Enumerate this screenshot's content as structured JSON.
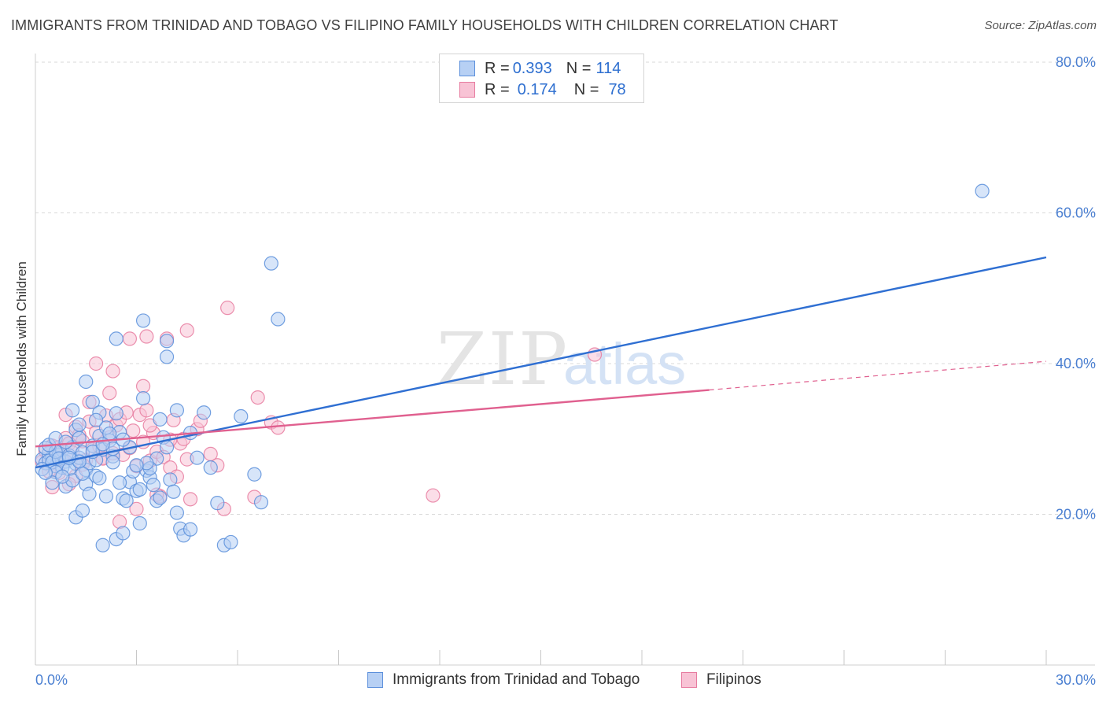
{
  "title": "IMMIGRANTS FROM TRINIDAD AND TOBAGO VS FILIPINO FAMILY HOUSEHOLDS WITH CHILDREN CORRELATION CHART",
  "source": "Source: ZipAtlas.com",
  "watermark": {
    "zip": "ZIP",
    "atlas": "atlas"
  },
  "legend": {
    "rows": [
      {
        "r_label": "R = ",
        "r_value": "0.393",
        "n_label": "N = ",
        "n_value": "114"
      },
      {
        "r_label": "R = ",
        "r_value": "0.174",
        "n_label": "N = ",
        "n_value": "78"
      }
    ]
  },
  "colors": {
    "blue_fill": "#b7d0f4",
    "blue_stroke": "#5b8fdb",
    "blue_line": "#2f6fd2",
    "pink_fill": "#f8c3d5",
    "pink_stroke": "#e77ca0",
    "pink_line": "#e0608f",
    "grid": "#d9d9d9",
    "axis_text": "#4a7fd1"
  },
  "chart_data": {
    "type": "scatter",
    "title": "IMMIGRANTS FROM TRINIDAD AND TOBAGO VS FILIPINO FAMILY HOUSEHOLDS WITH CHILDREN CORRELATION CHART",
    "xlabel": "",
    "ylabel": "Family Households with Children",
    "xlim": [
      0,
      30
    ],
    "ylim": [
      0,
      80
    ],
    "x_tick_labels": [
      "0.0%",
      "30.0%"
    ],
    "y_ticks": [
      20,
      40,
      60,
      80
    ],
    "y_tick_labels": [
      "20.0%",
      "40.0%",
      "60.0%",
      "80.0%"
    ],
    "grid": true,
    "legend_position": "top-center",
    "series": [
      {
        "name": "Immigrants from Trinidad and Tobago",
        "color": "#5b8fdb",
        "r": 0.393,
        "n": 114,
        "trend": {
          "x": [
            0,
            30
          ],
          "y": [
            26.2,
            54.1
          ]
        },
        "points": [
          [
            0.2,
            27.3
          ],
          [
            0.3,
            26.8
          ],
          [
            0.4,
            28.1
          ],
          [
            0.5,
            27.6
          ],
          [
            0.6,
            26.4
          ],
          [
            0.7,
            27.9
          ],
          [
            0.8,
            28.5
          ],
          [
            0.9,
            27.0
          ],
          [
            0.3,
            28.8
          ],
          [
            0.4,
            27.1
          ],
          [
            0.5,
            26.9
          ],
          [
            0.6,
            28.3
          ],
          [
            0.7,
            27.4
          ],
          [
            0.8,
            26.2
          ],
          [
            1.0,
            27.8
          ],
          [
            1.1,
            28.9
          ],
          [
            1.2,
            26.7
          ],
          [
            1.3,
            27.5
          ],
          [
            1.4,
            28.2
          ],
          [
            1.5,
            25.9
          ],
          [
            1.6,
            26.8
          ],
          [
            1.7,
            29.1
          ],
          [
            1.8,
            27.2
          ],
          [
            1.9,
            30.4
          ],
          [
            2.0,
            28.6
          ],
          [
            2.1,
            31.5
          ],
          [
            2.2,
            29.8
          ],
          [
            2.3,
            27.7
          ],
          [
            2.4,
            33.4
          ],
          [
            2.5,
            30.9
          ],
          [
            1.1,
            33.8
          ],
          [
            1.2,
            31.2
          ],
          [
            1.3,
            30.1
          ],
          [
            1.5,
            37.6
          ],
          [
            1.7,
            34.9
          ],
          [
            1.9,
            33.5
          ],
          [
            2.3,
            28.7
          ],
          [
            2.6,
            22.1
          ],
          [
            2.7,
            21.8
          ],
          [
            2.8,
            24.3
          ],
          [
            3.0,
            23.1
          ],
          [
            3.1,
            18.8
          ],
          [
            3.3,
            25.8
          ],
          [
            3.4,
            24.9
          ],
          [
            3.5,
            23.9
          ],
          [
            3.6,
            27.4
          ],
          [
            3.7,
            32.6
          ],
          [
            3.8,
            30.2
          ],
          [
            3.9,
            28.9
          ],
          [
            4.0,
            24.6
          ],
          [
            4.1,
            23.0
          ],
          [
            4.2,
            20.2
          ],
          [
            4.3,
            18.1
          ],
          [
            4.4,
            17.2
          ],
          [
            4.6,
            18.0
          ],
          [
            4.8,
            27.5
          ],
          [
            5.0,
            33.5
          ],
          [
            5.2,
            26.2
          ],
          [
            5.4,
            21.5
          ],
          [
            5.6,
            15.9
          ],
          [
            5.8,
            16.3
          ],
          [
            6.1,
            33.0
          ],
          [
            6.5,
            25.3
          ],
          [
            6.7,
            21.6
          ],
          [
            7.2,
            45.9
          ],
          [
            7.0,
            53.3
          ],
          [
            3.2,
            45.7
          ],
          [
            2.4,
            43.3
          ],
          [
            3.9,
            43.0
          ],
          [
            3.9,
            40.9
          ],
          [
            3.2,
            35.4
          ],
          [
            3.6,
            21.8
          ],
          [
            1.2,
            19.6
          ],
          [
            1.4,
            20.5
          ],
          [
            2.0,
            15.9
          ],
          [
            2.4,
            16.7
          ],
          [
            2.6,
            17.5
          ],
          [
            0.9,
            23.7
          ],
          [
            1.0,
            26.0
          ],
          [
            1.1,
            24.5
          ],
          [
            1.5,
            24.0
          ],
          [
            1.6,
            22.7
          ],
          [
            1.8,
            25.1
          ],
          [
            1.9,
            24.8
          ],
          [
            2.1,
            22.4
          ],
          [
            2.5,
            24.2
          ],
          [
            2.9,
            25.7
          ],
          [
            3.4,
            26.1
          ],
          [
            0.6,
            25.6
          ],
          [
            0.5,
            24.2
          ],
          [
            0.8,
            25.0
          ],
          [
            1.3,
            27.0
          ],
          [
            1.7,
            28.3
          ],
          [
            2.2,
            30.7
          ],
          [
            2.8,
            28.9
          ],
          [
            3.1,
            23.3
          ],
          [
            4.2,
            33.8
          ],
          [
            4.6,
            30.8
          ],
          [
            0.4,
            29.2
          ],
          [
            0.6,
            30.1
          ],
          [
            0.9,
            29.6
          ],
          [
            1.3,
            31.9
          ],
          [
            1.8,
            32.5
          ],
          [
            2.0,
            29.3
          ],
          [
            2.6,
            29.9
          ],
          [
            3.3,
            26.8
          ],
          [
            3.0,
            26.5
          ],
          [
            0.2,
            26.0
          ],
          [
            0.3,
            25.5
          ],
          [
            1.0,
            27.5
          ],
          [
            1.4,
            25.4
          ],
          [
            2.3,
            26.9
          ],
          [
            28.1,
            62.9
          ],
          [
            3.7,
            22.2
          ]
        ]
      },
      {
        "name": "Filipinos",
        "color": "#e77ca0",
        "r": 0.174,
        "n": 78,
        "trend": {
          "x": [
            0,
            20.0
          ],
          "y": [
            29.0,
            36.5
          ]
        },
        "trend_extension": {
          "x": [
            20.0,
            30
          ],
          "y": [
            36.5,
            40.3
          ]
        },
        "points": [
          [
            0.2,
            27.0
          ],
          [
            0.3,
            28.4
          ],
          [
            0.4,
            26.6
          ],
          [
            0.5,
            29.1
          ],
          [
            0.6,
            27.8
          ],
          [
            0.7,
            28.9
          ],
          [
            0.8,
            27.3
          ],
          [
            0.9,
            30.1
          ],
          [
            1.0,
            29.4
          ],
          [
            1.1,
            28.2
          ],
          [
            1.2,
            31.6
          ],
          [
            1.3,
            30.5
          ],
          [
            1.4,
            29.7
          ],
          [
            1.5,
            27.2
          ],
          [
            1.6,
            32.3
          ],
          [
            1.7,
            28.6
          ],
          [
            1.8,
            30.9
          ],
          [
            1.9,
            29.0
          ],
          [
            2.0,
            27.5
          ],
          [
            2.1,
            33.1
          ],
          [
            2.2,
            30.2
          ],
          [
            2.3,
            28.1
          ],
          [
            2.4,
            31.8
          ],
          [
            2.5,
            32.6
          ],
          [
            2.6,
            27.9
          ],
          [
            2.7,
            33.5
          ],
          [
            2.8,
            28.8
          ],
          [
            2.9,
            31.1
          ],
          [
            3.0,
            26.4
          ],
          [
            3.1,
            33.2
          ],
          [
            3.2,
            29.6
          ],
          [
            3.3,
            33.8
          ],
          [
            3.4,
            27.1
          ],
          [
            3.5,
            30.8
          ],
          [
            3.6,
            28.3
          ],
          [
            3.7,
            22.4
          ],
          [
            3.8,
            27.6
          ],
          [
            3.9,
            43.3
          ],
          [
            4.0,
            26.2
          ],
          [
            4.1,
            32.5
          ],
          [
            4.2,
            25.0
          ],
          [
            4.3,
            29.4
          ],
          [
            4.4,
            30.0
          ],
          [
            4.5,
            27.3
          ],
          [
            4.6,
            22.0
          ],
          [
            4.8,
            31.3
          ],
          [
            5.2,
            28.0
          ],
          [
            5.4,
            26.5
          ],
          [
            5.7,
            47.4
          ],
          [
            5.6,
            20.7
          ],
          [
            6.6,
            35.5
          ],
          [
            6.5,
            22.3
          ],
          [
            7.0,
            32.2
          ],
          [
            7.2,
            31.5
          ],
          [
            11.8,
            22.5
          ],
          [
            16.6,
            41.2
          ],
          [
            2.3,
            39.0
          ],
          [
            2.8,
            43.3
          ],
          [
            3.3,
            43.6
          ],
          [
            4.5,
            44.4
          ],
          [
            1.8,
            40.0
          ],
          [
            0.5,
            23.6
          ],
          [
            0.7,
            25.5
          ],
          [
            1.4,
            26.6
          ],
          [
            1.6,
            34.9
          ],
          [
            2.0,
            27.4
          ],
          [
            2.5,
            19.0
          ],
          [
            3.0,
            20.7
          ],
          [
            3.4,
            31.8
          ],
          [
            3.6,
            22.6
          ],
          [
            4.0,
            29.9
          ],
          [
            4.9,
            32.4
          ],
          [
            0.4,
            25.7
          ],
          [
            0.9,
            33.2
          ],
          [
            1.2,
            25.1
          ],
          [
            2.2,
            36.1
          ],
          [
            3.2,
            37.0
          ],
          [
            1.0,
            24.0
          ]
        ]
      }
    ]
  },
  "bottom_legend": {
    "blue_label": "Immigrants from Trinidad and Tobago",
    "pink_label": "Filipinos"
  }
}
